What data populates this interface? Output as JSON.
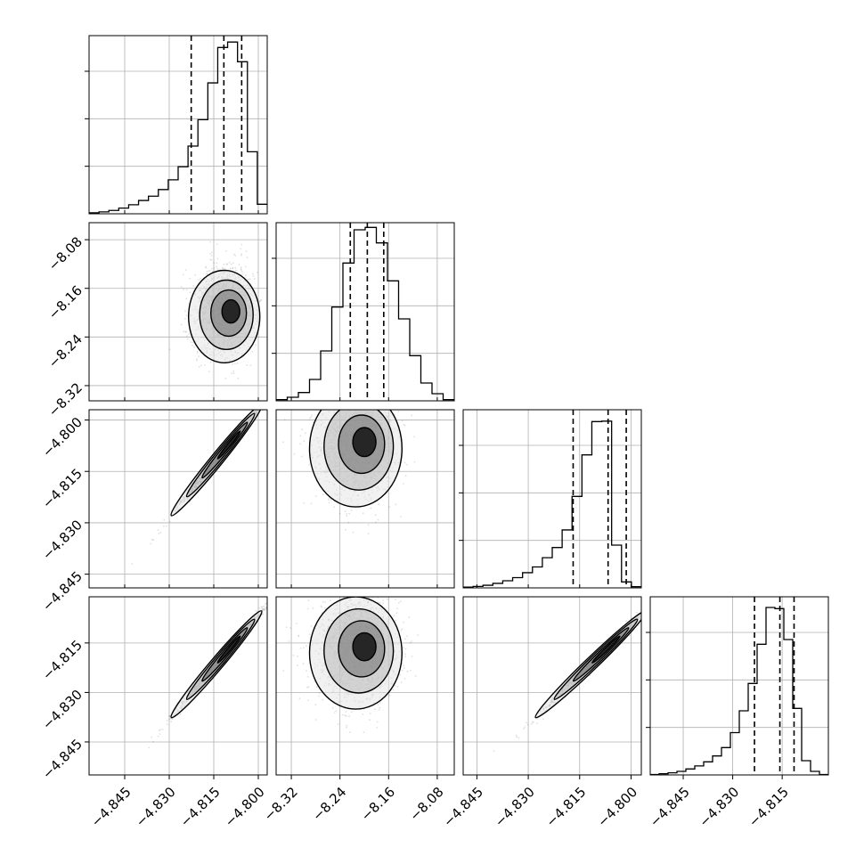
{
  "chart_data": {
    "type": "corner",
    "parameters": [
      {
        "range": [
          -4.857,
          -4.797
        ],
        "ticks": [
          -4.845,
          -4.83,
          -4.815,
          -4.8
        ],
        "tick_labels": [
          "−4.845",
          "−4.830",
          "−4.815",
          "−4.800"
        ]
      },
      {
        "range": [
          -8.345,
          -8.052
        ],
        "ticks": [
          -8.32,
          -8.24,
          -8.16,
          -8.08
        ],
        "tick_labels": [
          "−8.32",
          "−8.24",
          "−8.16",
          "−8.08"
        ]
      },
      {
        "range": [
          -4.849,
          -4.797
        ],
        "ticks": [
          -4.845,
          -4.83,
          -4.815,
          -4.8
        ],
        "tick_labels": [
          "−4.845",
          "−4.830",
          "−4.815",
          "−4.800"
        ]
      },
      {
        "range": [
          -4.855,
          -4.801
        ],
        "ticks": [
          -4.845,
          -4.83,
          -4.815
        ],
        "tick_labels": [
          "−4.845",
          "−4.830",
          "−4.815"
        ]
      }
    ],
    "diagonal_histograms": [
      {
        "param": 0,
        "counts": [
          0.4,
          0.8,
          1.4,
          2.4,
          3.8,
          5.6,
          7.4,
          10.2,
          14.3,
          19.8,
          28.5,
          39.6,
          55.1,
          70.0,
          72.3,
          64.0,
          26.1,
          4.0
        ],
        "quantiles": [
          -4.8226,
          -4.8116,
          -4.8056
        ]
      },
      {
        "param": 1,
        "counts": [
          0.5,
          1.5,
          3.5,
          9.0,
          21.0,
          39.5,
          58.0,
          72.0,
          73.0,
          66.5,
          50.5,
          34.5,
          19.0,
          7.5,
          3.0,
          0.5
        ],
        "quantiles": [
          -8.223,
          -8.195,
          -8.168
        ]
      },
      {
        "param": 2,
        "counts": [
          0.3,
          0.6,
          1.1,
          1.9,
          3.0,
          4.3,
          6.4,
          8.8,
          12.7,
          17.0,
          24.4,
          38.5,
          56.0,
          70.0,
          70.2,
          18.0,
          2.5,
          0.5
        ],
        "quantiles": [
          -4.8169,
          -4.8067,
          -4.8014
        ]
      },
      {
        "param": 3,
        "counts": [
          0.2,
          0.5,
          0.9,
          1.5,
          2.5,
          3.8,
          5.5,
          8.0,
          11.5,
          17.8,
          27.0,
          38.5,
          55.0,
          70.5,
          70.0,
          57.0,
          28.0,
          6.0,
          1.5,
          0.2
        ],
        "quantiles": [
          -4.8234,
          -4.8157,
          -4.8114
        ]
      }
    ],
    "pair_plots": [
      {
        "row": 1,
        "col": 0,
        "center": [
          -4.8085,
          -8.195
        ],
        "sigma": [
          0.006,
          0.038
        ],
        "correlation": 0.05
      },
      {
        "row": 2,
        "col": 0,
        "center": [
          -4.8085,
          -4.8058
        ],
        "sigma": [
          0.008,
          0.0085
        ],
        "correlation": 0.995
      },
      {
        "row": 2,
        "col": 1,
        "center": [
          -8.195,
          -4.8058
        ],
        "sigma": [
          0.038,
          0.0085
        ],
        "correlation": 0.06
      },
      {
        "row": 3,
        "col": 0,
        "center": [
          -4.8085,
          -4.8155
        ],
        "sigma": [
          0.008,
          0.0085
        ],
        "correlation": 0.995
      },
      {
        "row": 3,
        "col": 1,
        "center": [
          -8.195,
          -4.8155
        ],
        "sigma": [
          0.038,
          0.0085
        ],
        "correlation": 0.06
      },
      {
        "row": 3,
        "col": 2,
        "center": [
          -4.8058,
          -4.8155
        ],
        "sigma": [
          0.0085,
          0.0085
        ],
        "correlation": 0.995
      }
    ],
    "contour_levels": [
      "0.5σ",
      "1σ",
      "1.5σ",
      "2σ"
    ],
    "grid": true,
    "title": "",
    "legend": "none"
  }
}
